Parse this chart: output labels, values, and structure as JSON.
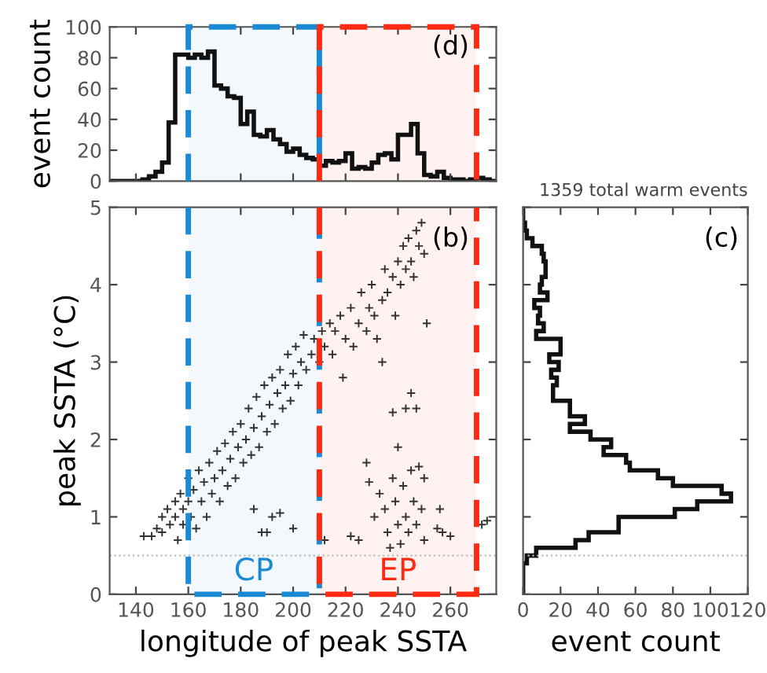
{
  "chart_data": [
    {
      "type": "histogram",
      "ylabel": "event count",
      "annotations": [
        "(d)"
      ],
      "bins": [
        130,
        132.5,
        135,
        137.5,
        140,
        142.5,
        145,
        147.5,
        150,
        152.5,
        155,
        157.5,
        160,
        162.5,
        165,
        167.5,
        170,
        172.5,
        175,
        177.5,
        180,
        182.5,
        185,
        187.5,
        190,
        192.5,
        195,
        197.5,
        200,
        202.5,
        205,
        207.5,
        210,
        212.5,
        215,
        217.5,
        220,
        222.5,
        225,
        227.5,
        230,
        232.5,
        235,
        237.5,
        240,
        242.5,
        245,
        247.5,
        250,
        252.5,
        255,
        257.5,
        260,
        262.5,
        265,
        267.5,
        270,
        272.5,
        275,
        277.5
      ],
      "values": [
        0,
        0,
        0,
        0,
        0,
        1,
        3,
        6,
        12,
        38,
        82,
        82,
        80,
        82,
        80,
        84,
        62,
        60,
        55,
        54,
        37,
        45,
        30,
        29,
        33,
        27,
        24,
        19,
        21,
        17,
        15,
        14,
        10,
        13,
        12,
        13,
        18,
        8,
        9,
        8,
        12,
        17,
        18,
        14,
        30,
        30,
        37,
        18,
        4,
        3,
        6,
        2,
        1,
        1,
        0,
        1,
        2,
        1,
        0
      ],
      "color": "#111111",
      "xlim": [
        130,
        277.5
      ],
      "ylim": [
        0,
        100
      ],
      "xticks": [
        140,
        160,
        180,
        200,
        220,
        240,
        260
      ],
      "yticks": [
        0,
        20,
        40,
        60,
        80,
        100
      ],
      "tick_labels": "y",
      "bands": [
        {
          "axis": "x",
          "from": 160,
          "to": 210,
          "color": "#1a8ad4"
        },
        {
          "axis": "x",
          "from": 210,
          "to": 270,
          "color": "#ff2a12"
        }
      ]
    },
    {
      "type": "scatter",
      "xlabel": "longitude of peak SSTA",
      "ylabel": "peak SSTA (°C)",
      "annotations": [
        "(b)"
      ],
      "marker": "cross",
      "color": "#333333",
      "x": [
        143,
        146,
        148,
        150,
        150,
        152,
        153,
        155,
        155,
        156,
        157,
        158,
        158,
        160,
        160,
        161,
        162,
        163,
        164,
        165,
        166,
        167,
        168,
        169,
        170,
        171,
        172,
        173,
        174,
        175,
        176,
        177,
        178,
        179,
        180,
        181,
        182,
        183,
        184,
        185,
        186,
        187,
        188,
        189,
        190,
        191,
        192,
        193,
        194,
        195,
        196,
        197,
        198,
        199,
        200,
        201,
        202,
        203,
        204,
        205,
        207,
        208,
        210,
        211,
        212,
        214,
        215,
        216,
        218,
        219,
        220,
        222,
        223,
        225,
        226,
        228,
        229,
        230,
        231,
        232,
        234,
        235,
        236,
        238,
        239,
        240,
        241,
        242,
        243,
        244,
        245,
        246,
        247,
        248,
        249,
        250,
        251,
        234,
        185,
        188,
        190,
        192,
        195,
        200,
        212,
        222,
        225,
        228,
        229,
        231,
        233,
        235,
        236,
        237,
        238,
        238,
        239,
        240,
        240,
        241,
        242,
        243,
        243,
        244,
        245,
        245,
        246,
        247,
        247,
        248,
        249,
        250,
        250,
        255,
        256,
        257,
        260,
        272,
        274
      ],
      "values": [
        0.75,
        0.75,
        0.85,
        0.8,
        1.0,
        1.1,
        0.9,
        1.0,
        1.2,
        0.7,
        1.3,
        1.1,
        0.9,
        1.2,
        1.5,
        1.0,
        1.35,
        0.85,
        1.6,
        1.2,
        1.45,
        1.0,
        1.7,
        1.3,
        1.5,
        1.85,
        1.2,
        1.6,
        1.95,
        1.4,
        1.75,
        2.1,
        1.5,
        1.9,
        2.2,
        1.7,
        2.0,
        2.4,
        1.8,
        2.15,
        2.55,
        1.9,
        2.3,
        2.7,
        2.1,
        2.45,
        2.8,
        2.2,
        2.6,
        2.9,
        2.4,
        2.7,
        3.1,
        2.5,
        2.85,
        3.2,
        2.7,
        3.0,
        3.35,
        2.9,
        3.1,
        3.3,
        3.0,
        3.4,
        3.2,
        3.5,
        3.1,
        3.4,
        3.6,
        2.8,
        3.3,
        3.7,
        3.2,
        3.5,
        3.9,
        3.4,
        3.7,
        4.0,
        3.6,
        3.3,
        3.8,
        4.2,
        3.9,
        4.1,
        3.6,
        4.3,
        4.0,
        4.5,
        4.2,
        4.6,
        4.3,
        4.1,
        4.7,
        4.5,
        4.8,
        4.4,
        3.5,
        3.0,
        1.1,
        0.8,
        0.8,
        1.0,
        1.05,
        0.85,
        0.7,
        0.75,
        0.7,
        1.7,
        1.45,
        1.0,
        1.3,
        1.1,
        0.8,
        0.6,
        1.5,
        2.35,
        1.2,
        0.9,
        1.9,
        0.65,
        1.4,
        2.4,
        1.0,
        0.8,
        1.6,
        2.6,
        1.2,
        0.9,
        2.4,
        1.65,
        1.1,
        1.5,
        0.7,
        0.85,
        1.1,
        0.8,
        0.75,
        0.9,
        0.95
      ],
      "xlim": [
        130,
        277.5
      ],
      "ylim": [
        0,
        5
      ],
      "xticks": [
        140,
        160,
        180,
        200,
        220,
        240,
        260
      ],
      "yticks": [
        0,
        1,
        2,
        3,
        4,
        5
      ],
      "ref_lines": [
        {
          "axis": "y",
          "value": 0.5,
          "color": "#bbbbbb",
          "line_style": "dotted"
        }
      ],
      "bands": [
        {
          "axis": "x",
          "from": 160,
          "to": 210,
          "label": "CP",
          "color": "#1a8ad4"
        },
        {
          "axis": "x",
          "from": 210,
          "to": 270,
          "label": "EP",
          "color": "#ff2a12"
        }
      ]
    },
    {
      "type": "histogram",
      "orientation": "horizontal",
      "xlabel": "event count",
      "annotations": [
        "(c)",
        "1359 total warm events"
      ],
      "color": "#111111",
      "bins": [
        0,
        0.1,
        0.2,
        0.3,
        0.4,
        0.5,
        0.6,
        0.7,
        0.8,
        0.9,
        1,
        1.1,
        1.2,
        1.3,
        1.4,
        1.5,
        1.6,
        1.7,
        1.8,
        1.9,
        2,
        2.1,
        2.2,
        2.3,
        2.4,
        2.5,
        2.6,
        2.7,
        2.8,
        2.9,
        3,
        3.1,
        3.2,
        3.3,
        3.4,
        3.5,
        3.6,
        3.7,
        3.8,
        3.9,
        4,
        4.1,
        4.2,
        4.3,
        4.4,
        4.5,
        4.6,
        4.7,
        4.8,
        4.9,
        5
      ],
      "values": [
        0,
        0,
        0,
        0,
        2,
        7,
        28,
        35,
        51,
        51,
        81,
        93,
        111,
        106,
        80,
        72,
        57,
        55,
        43,
        47,
        36,
        25,
        33,
        25,
        25,
        16,
        16,
        18,
        15,
        19,
        14,
        20,
        20,
        7,
        11,
        8,
        9,
        6,
        13,
        9,
        10,
        12,
        12,
        11,
        10,
        5,
        2,
        1,
        0,
        0
      ],
      "xlim": [
        0,
        120
      ],
      "ylim": [
        0,
        5
      ],
      "xticks": [
        0,
        20,
        40,
        60,
        80,
        100,
        120
      ],
      "yticks": [
        0,
        1,
        2,
        3,
        4,
        5
      ],
      "tick_labels": "x",
      "ref_lines": [
        {
          "axis": "y",
          "value": 0.5,
          "color": "#bbbbbb",
          "line_style": "dotted"
        }
      ]
    }
  ]
}
